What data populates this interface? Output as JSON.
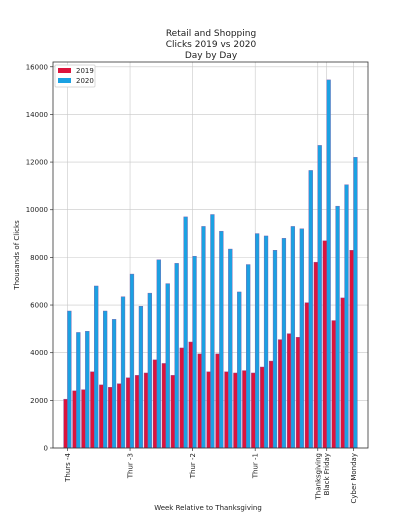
{
  "chart_data": {
    "type": "bar",
    "title": [
      "Retail and Shopping",
      "Clicks 2019 vs 2020",
      "Day by Day"
    ],
    "xlabel": "Week Relative to Thanksgiving",
    "ylabel": "Thousands of Clicks",
    "ylim": [
      0,
      16200
    ],
    "yticks": [
      0,
      2000,
      4000,
      6000,
      8000,
      10000,
      12000,
      14000,
      16000
    ],
    "grid": true,
    "legend_position": "top-left",
    "x_tick_labels": [
      {
        "label": "Thurs -4",
        "index": 0
      },
      {
        "label": "Thur -3",
        "index": 7
      },
      {
        "label": "Thur -2",
        "index": 14
      },
      {
        "label": "Thur -1",
        "index": 21
      },
      {
        "label": "Thanksgiving",
        "index": 28
      },
      {
        "label": "Black Friday",
        "index": 29
      },
      {
        "label": "Cyber Monday",
        "index": 32
      }
    ],
    "series": [
      {
        "name": "2019",
        "color": "#dc143c",
        "values": [
          2050,
          2400,
          2450,
          3200,
          2650,
          2550,
          2700,
          2950,
          3050,
          3150,
          3700,
          3550,
          3050,
          4200,
          4450,
          3950,
          3200,
          3950,
          3200,
          3150,
          3250,
          3150,
          3400,
          3650,
          4550,
          4800,
          4650,
          6100,
          7800,
          8700,
          5350,
          6300,
          8300
        ]
      },
      {
        "name": "2020",
        "color": "#1ba1e2",
        "values": [
          5750,
          4850,
          4900,
          6800,
          5750,
          5400,
          6350,
          7300,
          5950,
          6500,
          7900,
          6900,
          7750,
          9700,
          8050,
          9300,
          9800,
          9100,
          8350,
          6550,
          7700,
          9000,
          8900,
          8300,
          8800,
          9300,
          9200,
          11650,
          12700,
          15450,
          10150,
          11050,
          12200
        ]
      }
    ]
  }
}
